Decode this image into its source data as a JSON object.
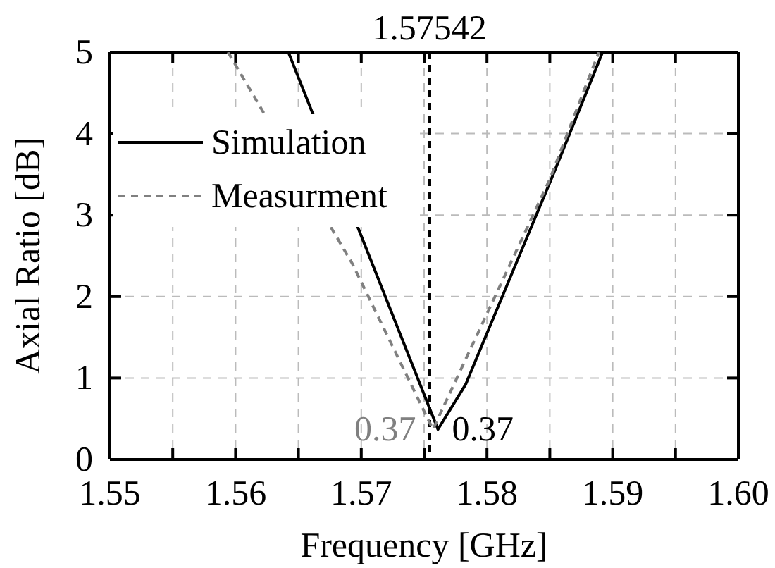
{
  "chart_data": {
    "type": "line",
    "xlabel": "Frequency [GHz]",
    "ylabel": "Axial Ratio [dB]",
    "xlim": [
      1.55,
      1.6
    ],
    "ylim": [
      0,
      5
    ],
    "xticks": [
      1.55,
      {
        "value": 1.555,
        "label": null
      },
      1.56,
      {
        "value": 1.565,
        "label": null
      },
      1.57,
      {
        "value": 1.575,
        "label": null
      },
      1.58,
      {
        "value": 1.585,
        "label": null
      },
      1.59,
      {
        "value": 1.595,
        "label": null
      },
      {
        "value": 1.6,
        "label": "1.60"
      }
    ],
    "yticks": [
      0,
      1,
      2,
      3,
      4,
      5
    ],
    "grid": true,
    "legend": "top left",
    "series": [
      {
        "name": "Simulation",
        "color": "#000000",
        "line_style": "solid",
        "x": [
          1.5642,
          1.5761,
          1.5783,
          1.5853,
          1.5892
        ],
        "values": [
          5,
          0.37,
          0.92,
          3.51,
          5
        ]
      },
      {
        "name": "Measurment",
        "color": "#808080",
        "line_style": "dashed",
        "x": [
          1.5594,
          1.5693,
          1.5757,
          1.585,
          1.5889
        ],
        "values": [
          5,
          2.4,
          0.37,
          3.44,
          5
        ]
      }
    ],
    "ref_lines": [
      {
        "axis": "x",
        "value": 1.57542,
        "label": "1.57542",
        "color": "#000000",
        "line_style": "dashed"
      }
    ],
    "annotations": [
      {
        "text": "0.37",
        "x": 1.5761,
        "y": 0.37
      },
      {
        "text": "0.37",
        "x": 1.5757,
        "y": 0.37
      }
    ]
  }
}
